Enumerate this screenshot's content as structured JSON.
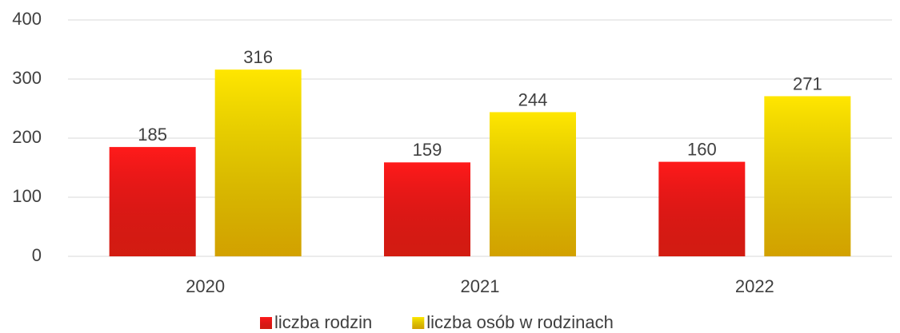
{
  "chart_data": {
    "type": "bar",
    "categories": [
      "2020",
      "2021",
      "2022"
    ],
    "series": [
      {
        "name": "liczba rodzin",
        "color": "#ff1a1a",
        "values": [
          185,
          159,
          160
        ]
      },
      {
        "name": "liczba osób w rodzinach",
        "color": "#ffe600",
        "values": [
          316,
          244,
          271
        ]
      }
    ],
    "ylim": [
      0,
      400
    ],
    "yticks": [
      0,
      100,
      200,
      300,
      400
    ],
    "grid": true,
    "legend": "bottom"
  }
}
